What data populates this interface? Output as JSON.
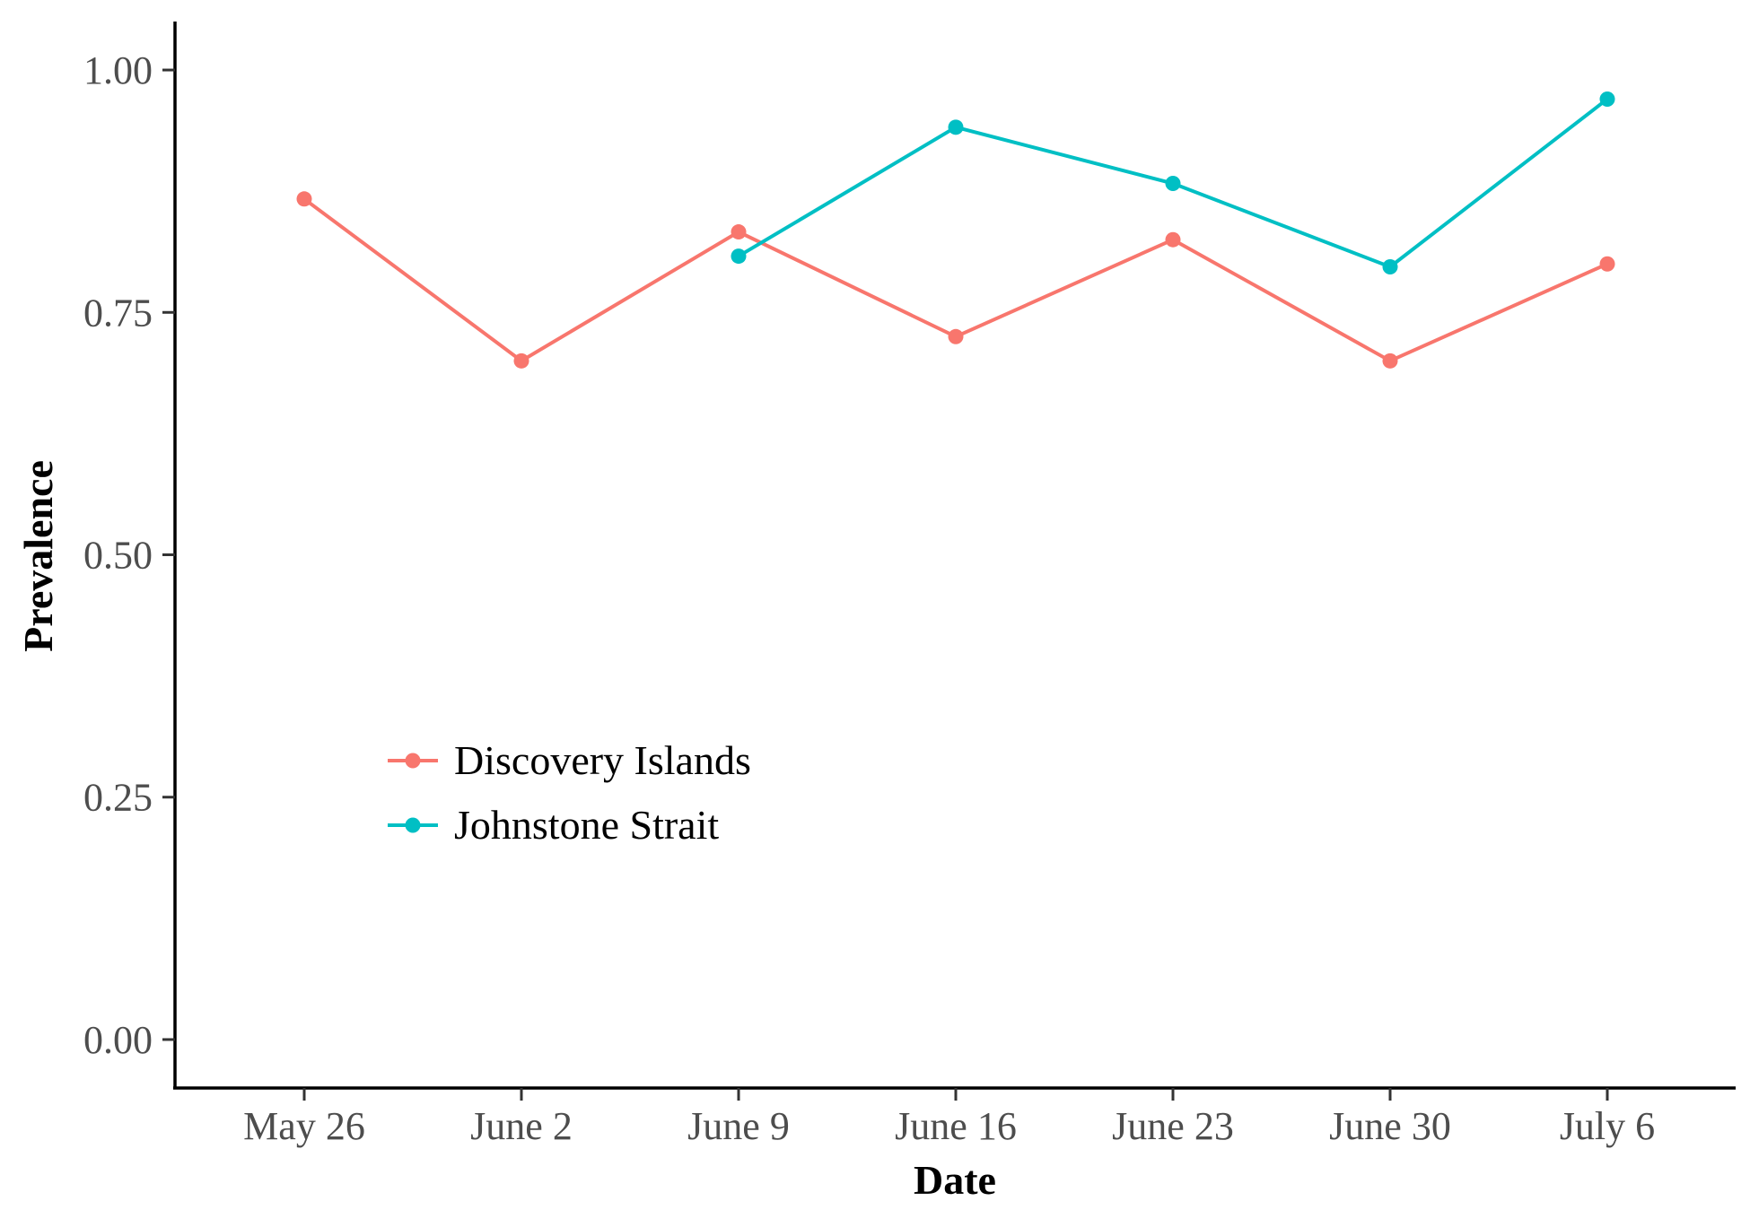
{
  "chart_data": {
    "type": "line",
    "title": "",
    "xlabel": "Date",
    "ylabel": "Prevalence",
    "x_categories": [
      "May 26",
      "June 2",
      "June 9",
      "June 16",
      "June 23",
      "June 30",
      "July 6"
    ],
    "y_ticks": [
      "0.00",
      "0.25",
      "0.50",
      "0.75",
      "1.00"
    ],
    "ylim": [
      -0.05,
      1.05
    ],
    "grid": false,
    "legend_position": "inside-left",
    "series": [
      {
        "name": "Discovery Islands",
        "color": "#F8766D",
        "points": [
          {
            "x": "May 26",
            "y": 0.867
          },
          {
            "x": "June 2",
            "y": 0.7
          },
          {
            "x": "June 9",
            "y": 0.833
          },
          {
            "x": "June 16",
            "y": 0.725
          },
          {
            "x": "June 23",
            "y": 0.825
          },
          {
            "x": "June 30",
            "y": 0.7
          },
          {
            "x": "July 6",
            "y": 0.8
          }
        ]
      },
      {
        "name": "Johnstone Strait",
        "color": "#00BFC4",
        "points": [
          {
            "x": "June 9",
            "y": 0.808
          },
          {
            "x": "June 16",
            "y": 0.941
          },
          {
            "x": "June 23",
            "y": 0.883
          },
          {
            "x": "June 30",
            "y": 0.797
          },
          {
            "x": "July 6",
            "y": 0.97
          }
        ]
      }
    ]
  }
}
